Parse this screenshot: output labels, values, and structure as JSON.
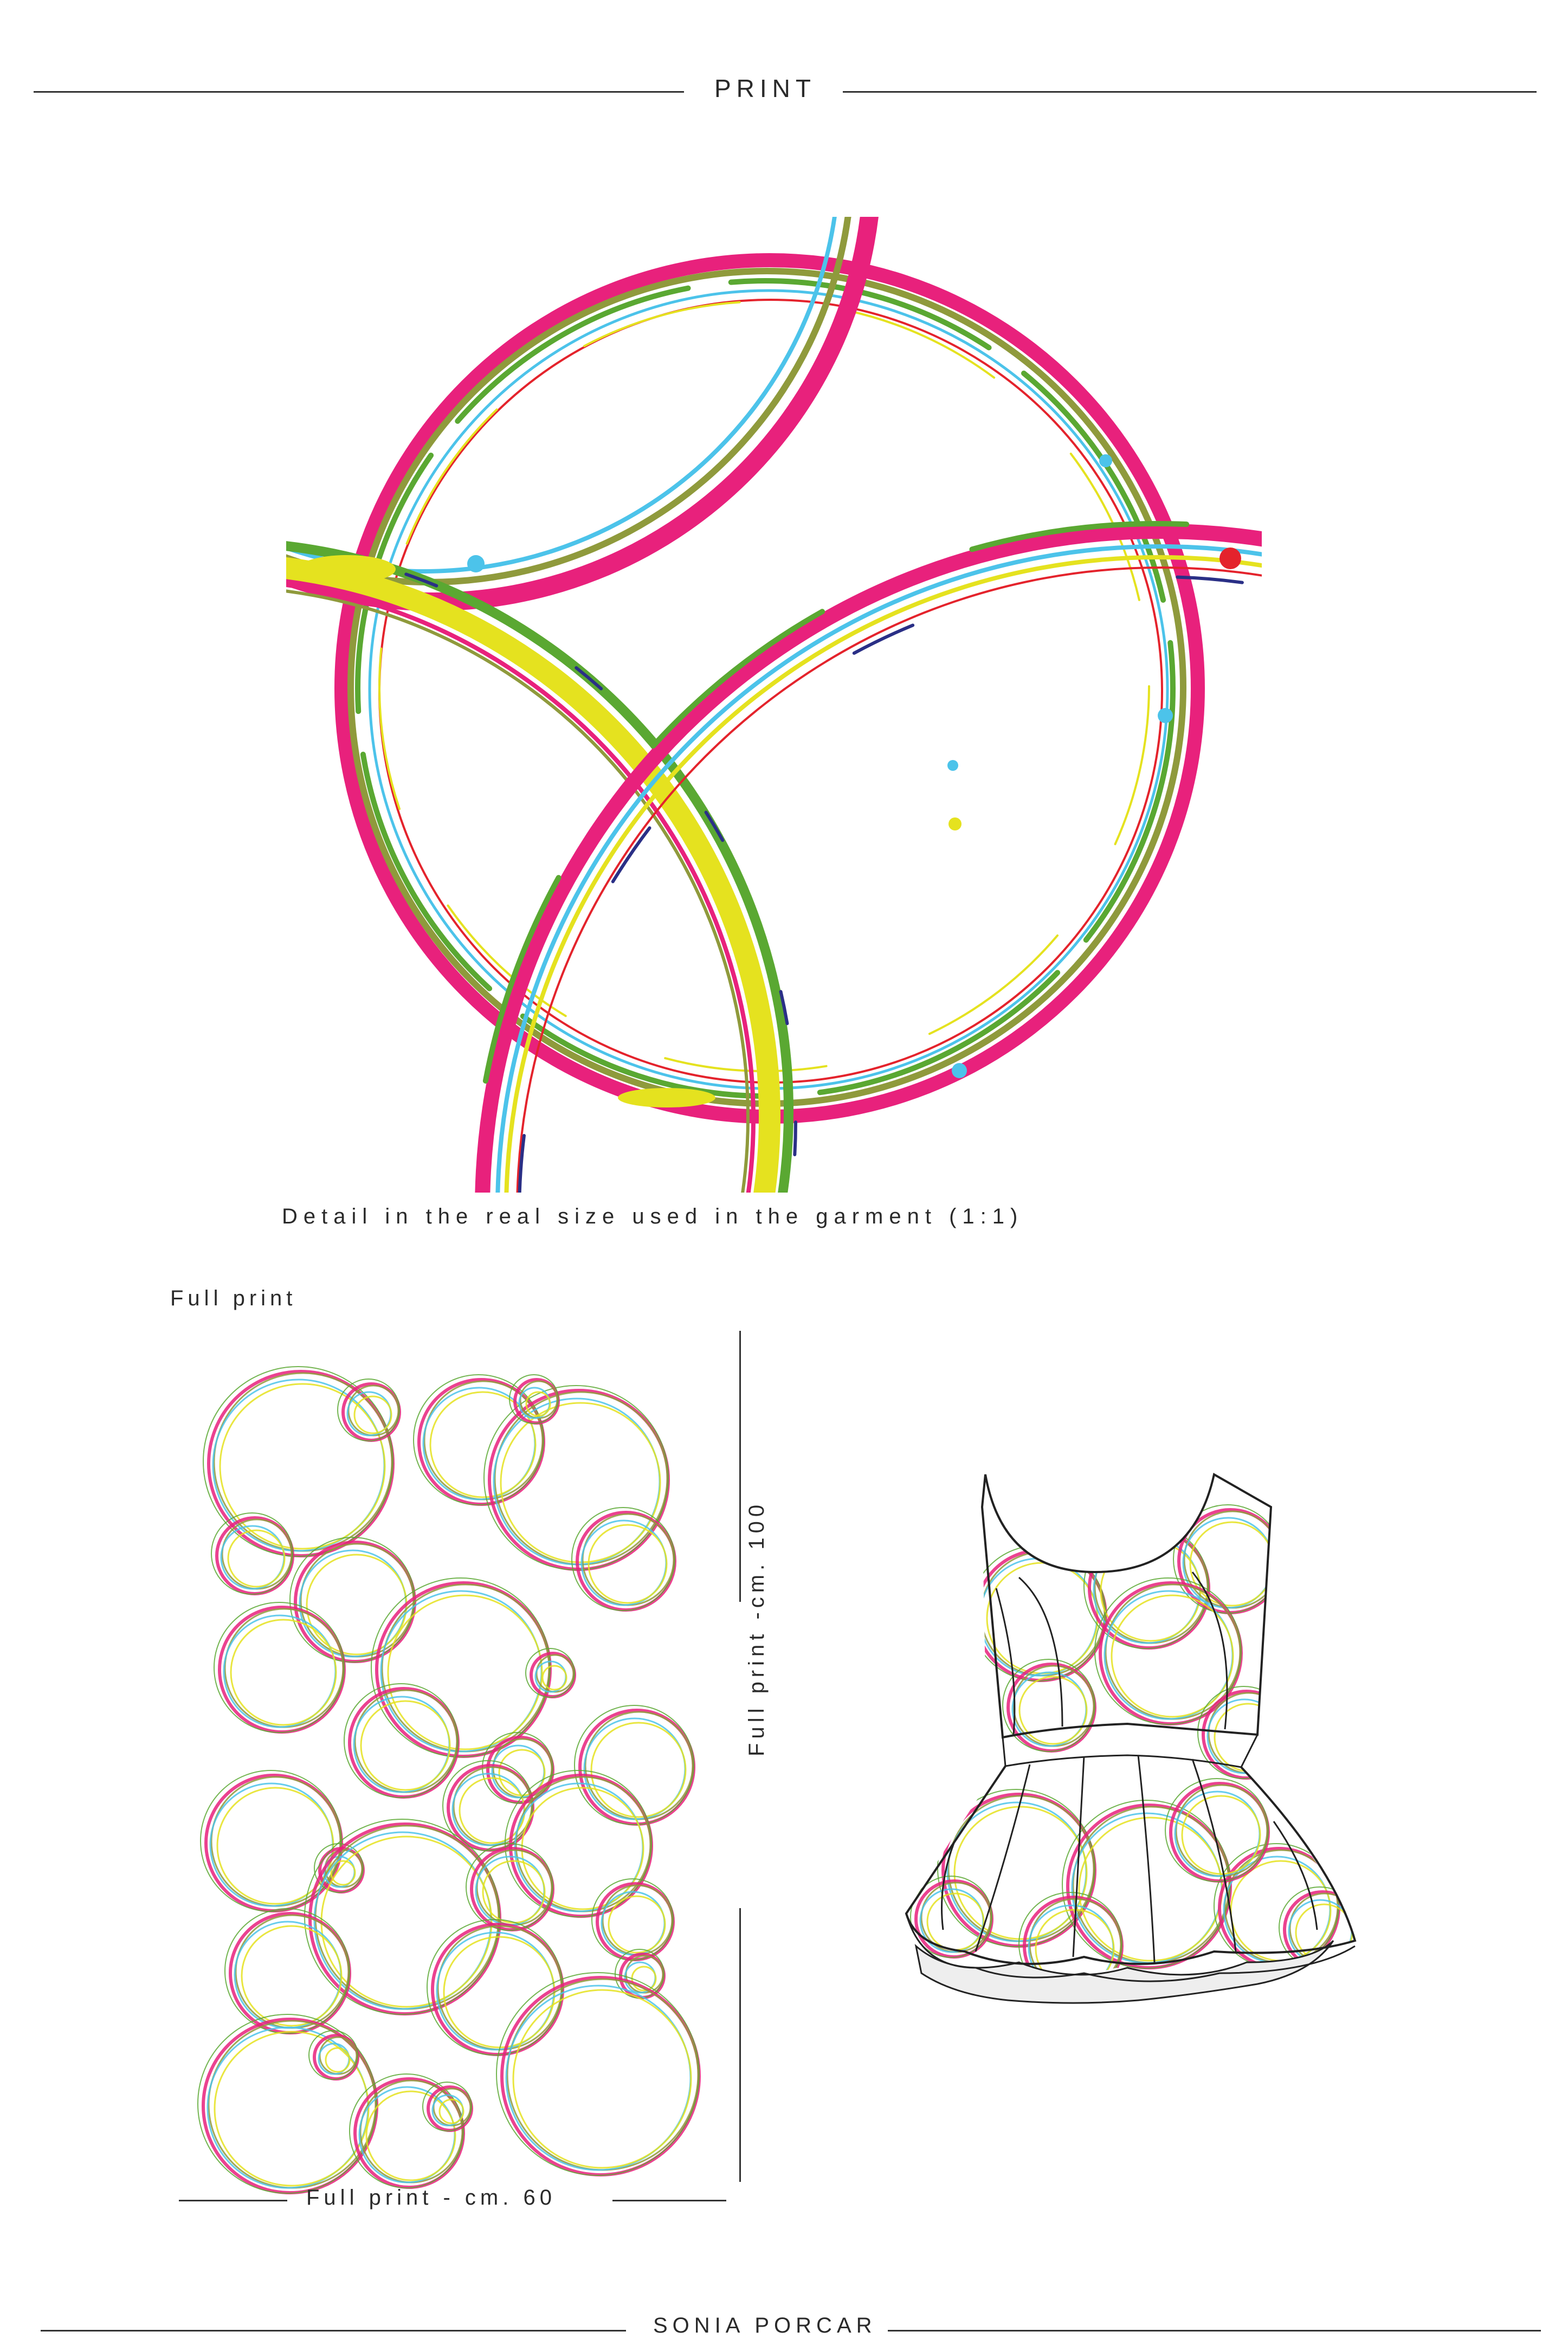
{
  "header": {
    "title": "PRINT"
  },
  "detail": {
    "caption": "Detail in the real size used in the garment (1:1)"
  },
  "full_print": {
    "label": "Full print",
    "height_label": "Full print -cm. 100",
    "width_label": "Full print - cm. 60"
  },
  "footer": {
    "author": "SONIA PORCAR"
  },
  "colors": {
    "pink": "#e8217c",
    "cyan": "#4cc3ea",
    "green": "#5aa832",
    "olive": "#8f9a3c",
    "yellow": "#e5e21f",
    "red": "#e4232c",
    "navy": "#2a2f86",
    "line": "#333333"
  }
}
